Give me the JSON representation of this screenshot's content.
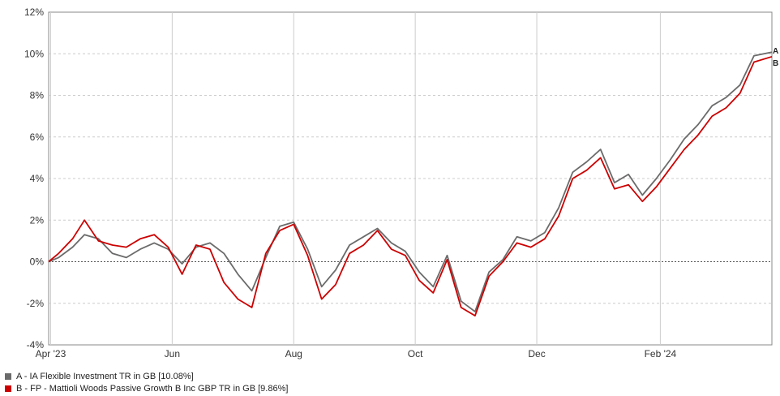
{
  "chart_data": {
    "type": "line",
    "y_ticks": [
      "12%",
      "10%",
      "8%",
      "6%",
      "4%",
      "2%",
      "0%",
      "-2%",
      "-4%"
    ],
    "y_tick_values": [
      12,
      10,
      8,
      6,
      4,
      2,
      0,
      -2,
      -4
    ],
    "ylim": [
      -4,
      12
    ],
    "x_ticks": [
      "Apr '23",
      "Jun",
      "Aug",
      "Oct",
      "Dec",
      "Feb '24"
    ],
    "x_tick_dates": [
      "2023-04-01",
      "2023-06-01",
      "2023-08-01",
      "2023-10-01",
      "2023-12-01",
      "2024-02-01"
    ],
    "xlim": [
      "2023-03-31",
      "2024-03-28"
    ],
    "grid": true,
    "legend_position": "bottom-left",
    "series": [
      {
        "name": "A - IA Flexible Investment TR in GB [10.08%]",
        "end_label": "A",
        "color": "#6b6b6b",
        "x": [
          "2023-03-31",
          "2023-04-05",
          "2023-04-12",
          "2023-04-18",
          "2023-04-25",
          "2023-05-02",
          "2023-05-09",
          "2023-05-16",
          "2023-05-23",
          "2023-05-30",
          "2023-06-06",
          "2023-06-13",
          "2023-06-20",
          "2023-06-27",
          "2023-07-04",
          "2023-07-11",
          "2023-07-18",
          "2023-07-25",
          "2023-08-01",
          "2023-08-08",
          "2023-08-15",
          "2023-08-22",
          "2023-08-29",
          "2023-09-05",
          "2023-09-12",
          "2023-09-19",
          "2023-09-26",
          "2023-10-03",
          "2023-10-10",
          "2023-10-17",
          "2023-10-24",
          "2023-10-31",
          "2023-11-07",
          "2023-11-14",
          "2023-11-21",
          "2023-11-28",
          "2023-12-05",
          "2023-12-12",
          "2023-12-19",
          "2023-12-26",
          "2024-01-02",
          "2024-01-09",
          "2024-01-16",
          "2024-01-23",
          "2024-01-30",
          "2024-02-06",
          "2024-02-13",
          "2024-02-20",
          "2024-02-27",
          "2024-03-05",
          "2024-03-12",
          "2024-03-19",
          "2024-03-28"
        ],
        "values": [
          0.0,
          0.2,
          0.7,
          1.3,
          1.1,
          0.4,
          0.2,
          0.6,
          0.9,
          0.6,
          -0.1,
          0.7,
          0.9,
          0.4,
          -0.6,
          -1.4,
          0.2,
          1.7,
          1.9,
          0.6,
          -1.2,
          -0.4,
          0.8,
          1.2,
          1.6,
          0.9,
          0.5,
          -0.5,
          -1.2,
          0.3,
          -1.9,
          -2.4,
          -0.5,
          0.1,
          1.2,
          1.0,
          1.4,
          2.6,
          4.3,
          4.8,
          5.4,
          3.8,
          4.2,
          3.2,
          4.0,
          4.9,
          5.9,
          6.6,
          7.5,
          7.9,
          8.5,
          9.9,
          10.08
        ]
      },
      {
        "name": "B - FP - Mattioli Woods Passive Growth B Inc GBP TR in GB [9.86%]",
        "end_label": "B",
        "color": "#cc0000",
        "x": [
          "2023-03-31",
          "2023-04-05",
          "2023-04-12",
          "2023-04-18",
          "2023-04-25",
          "2023-05-02",
          "2023-05-09",
          "2023-05-16",
          "2023-05-23",
          "2023-05-30",
          "2023-06-06",
          "2023-06-13",
          "2023-06-20",
          "2023-06-27",
          "2023-07-04",
          "2023-07-11",
          "2023-07-18",
          "2023-07-25",
          "2023-08-01",
          "2023-08-08",
          "2023-08-15",
          "2023-08-22",
          "2023-08-29",
          "2023-09-05",
          "2023-09-12",
          "2023-09-19",
          "2023-09-26",
          "2023-10-03",
          "2023-10-10",
          "2023-10-17",
          "2023-10-24",
          "2023-10-31",
          "2023-11-07",
          "2023-11-14",
          "2023-11-21",
          "2023-11-28",
          "2023-12-05",
          "2023-12-12",
          "2023-12-19",
          "2023-12-26",
          "2024-01-02",
          "2024-01-09",
          "2024-01-16",
          "2024-01-23",
          "2024-01-30",
          "2024-02-06",
          "2024-02-13",
          "2024-02-20",
          "2024-02-27",
          "2024-03-05",
          "2024-03-12",
          "2024-03-19",
          "2024-03-28"
        ],
        "values": [
          0.0,
          0.4,
          1.1,
          2.0,
          1.0,
          0.8,
          0.7,
          1.1,
          1.3,
          0.7,
          -0.6,
          0.8,
          0.6,
          -1.0,
          -1.8,
          -2.2,
          0.4,
          1.5,
          1.8,
          0.3,
          -1.8,
          -1.1,
          0.4,
          0.8,
          1.5,
          0.6,
          0.3,
          -0.9,
          -1.5,
          0.1,
          -2.2,
          -2.6,
          -0.7,
          0.0,
          0.9,
          0.7,
          1.1,
          2.2,
          4.0,
          4.4,
          5.0,
          3.5,
          3.7,
          2.9,
          3.6,
          4.5,
          5.4,
          6.1,
          7.0,
          7.4,
          8.1,
          9.6,
          9.86
        ]
      }
    ]
  }
}
